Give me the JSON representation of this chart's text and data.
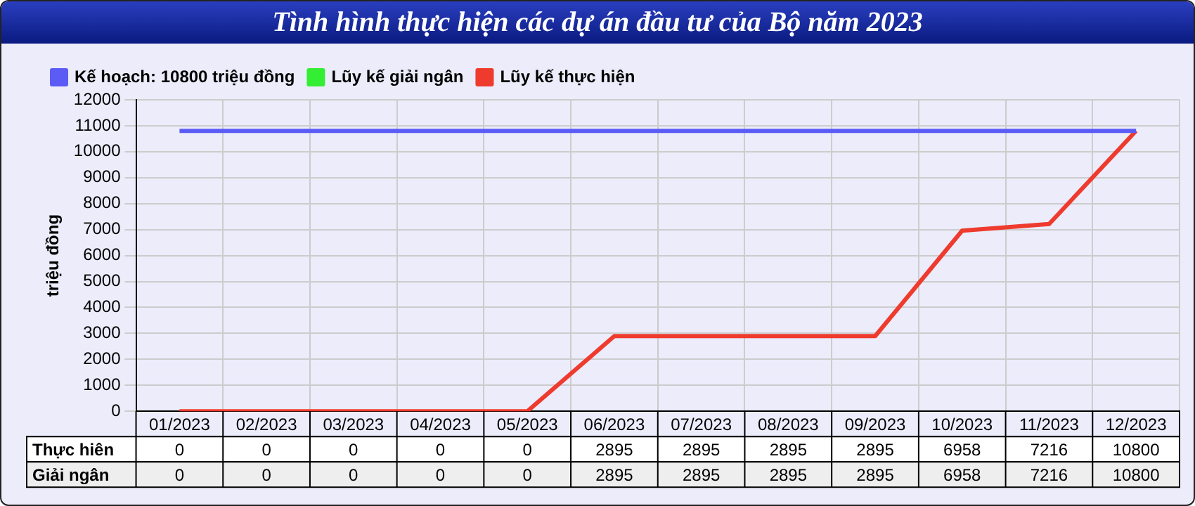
{
  "chart_data": {
    "type": "line",
    "title": "Tình hình thực hiện các dự án đầu tư của Bộ năm 2023",
    "ylabel": "triệu đồng",
    "categories": [
      "01/2023",
      "02/2023",
      "03/2023",
      "04/2023",
      "05/2023",
      "06/2023",
      "07/2023",
      "08/2023",
      "09/2023",
      "10/2023",
      "11/2023",
      "12/2023"
    ],
    "series": [
      {
        "name": "Lũy kế thực hiện",
        "color": "#ee3b2e",
        "values": [
          0,
          0,
          0,
          0,
          0,
          2895,
          2895,
          2895,
          2895,
          6958,
          7216,
          10800
        ],
        "value_labels": [
          "0",
          "0",
          "0",
          "0",
          "0",
          "2895",
          "2895",
          "2895",
          "2895",
          "6958",
          "7216",
          "10800"
        ]
      },
      {
        "name": "Lũy kế giải ngân",
        "color": "#33ee33",
        "values": [
          null,
          null,
          null,
          null,
          null,
          null,
          null,
          null,
          null,
          null,
          null,
          null
        ],
        "value_labels": [
          "0",
          "0",
          "0",
          "0",
          "0",
          "2895",
          "2895",
          "2895",
          "2895",
          "6958",
          "7216",
          "10800"
        ]
      },
      {
        "name": "Kế hoạch: 10800 triệu đồng",
        "color": "#5b5bf5",
        "values": [
          10800,
          10800,
          10800,
          10800,
          10800,
          10800,
          10800,
          10800,
          10800,
          10800,
          10800,
          10800
        ]
      }
    ],
    "annotations": [
      "Thực hiên",
      "Giải ngân"
    ],
    "ylim": [
      0,
      12000
    ],
    "yticks": [
      0,
      1000,
      2000,
      3000,
      4000,
      5000,
      6000,
      7000,
      8000,
      9000,
      10000,
      11000,
      12000
    ],
    "grid": true,
    "legend": "top left",
    "marker": "none",
    "line_style": "solid"
  }
}
